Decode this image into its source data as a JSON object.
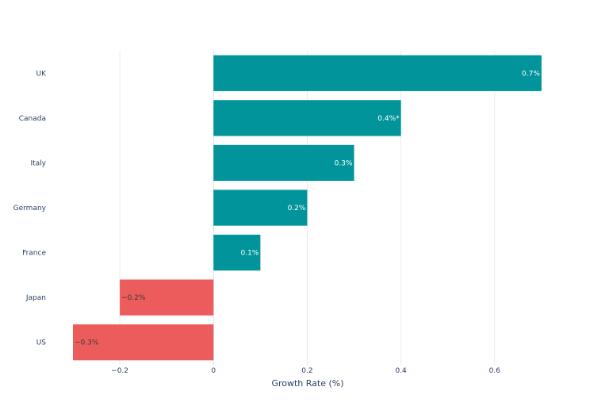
{
  "chart_data": {
    "type": "bar",
    "orientation": "horizontal",
    "categories": [
      "UK",
      "Canada",
      "Italy",
      "Germany",
      "France",
      "Japan",
      "US"
    ],
    "values": [
      0.7,
      0.4,
      0.3,
      0.2,
      0.1,
      -0.2,
      -0.3
    ],
    "data_labels": [
      "0.7%",
      "0.4%*",
      "0.3%",
      "0.2%",
      "0.1%",
      "−0.2%",
      "−0.3%"
    ],
    "xlabel": "Growth Rate (%)",
    "ylabel": "",
    "xlim": [
      -0.3,
      0.8
    ],
    "xticks": [
      -0.2,
      0,
      0.2,
      0.4,
      0.6
    ],
    "xtick_labels": [
      "−0.2",
      "0",
      "0.2",
      "0.4",
      "0.6"
    ],
    "grid": true,
    "colors": {
      "positive": "#02949b",
      "negative": "#ec5c5c",
      "label_on_positive": "#ffffff",
      "label_on_negative": "#3a3a3a"
    }
  }
}
